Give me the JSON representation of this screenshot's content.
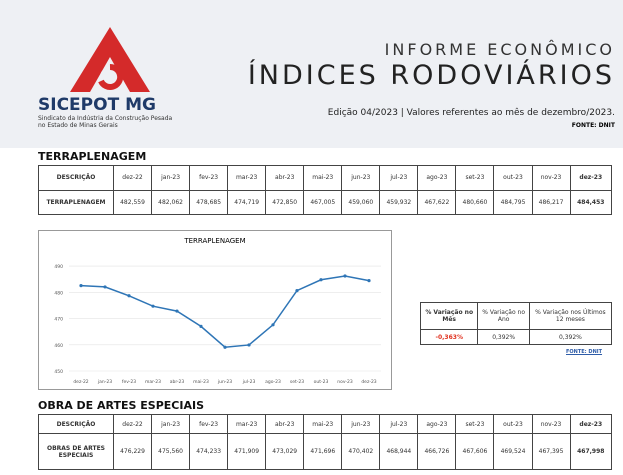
{
  "header": {
    "logo": "SICEPOT MG",
    "logo_subtitle": "Sindicato da Indústria da Construção Pesada no Estado de Minas Gerais",
    "kicker": "INFORME ECONÔMICO",
    "title": "ÍNDICES RODOVIÁRIOS",
    "edition": "Edição 04/2023  |  Valores referentes ao mês de dezembro/2023.",
    "source": "FONTE: DNIT"
  },
  "terraplenagem": {
    "title": "TERRAPLENAGEM",
    "columns": [
      "DESCRIÇÃO",
      "dez-22",
      "jan-23",
      "fev-23",
      "mar-23",
      "abr-23",
      "mai-23",
      "jun-23",
      "jul-23",
      "ago-23",
      "set-23",
      "out-23",
      "nov-23",
      "dez-23"
    ],
    "rows": [
      [
        "TERRAPLENAGEM",
        "482,559",
        "482,062",
        "478,685",
        "474,719",
        "472,850",
        "467,005",
        "459,060",
        "459,932",
        "467,622",
        "480,660",
        "484,795",
        "486,217",
        "484,453"
      ]
    ]
  },
  "chart_data": {
    "type": "line",
    "title": "TERRAPLENAGEM",
    "categories": [
      "dez-22",
      "jan-23",
      "fev-23",
      "mar-23",
      "abr-23",
      "mai-23",
      "jun-23",
      "jul-23",
      "ago-23",
      "set-23",
      "out-23",
      "nov-23",
      "dez-23"
    ],
    "series": [
      {
        "name": "TERRAPLENAGEM",
        "color": "#2e75b6",
        "values": [
          482.559,
          482.062,
          478.685,
          474.719,
          472.85,
          467.005,
          459.06,
          459.932,
          467.622,
          480.66,
          484.795,
          486.217,
          484.453
        ]
      }
    ],
    "ylim": [
      450,
      495
    ],
    "yticks": [
      450,
      460,
      470,
      480,
      490
    ],
    "grid": true
  },
  "variacao": {
    "columns": [
      "% Variação no Mês",
      "% Variação no Ano",
      "% Variação nos Últimos 12 meses"
    ],
    "rows": [
      [
        "-0,363%",
        "0,392%",
        "0,392%"
      ]
    ],
    "source": "FONTE: DNIT"
  },
  "obras": {
    "title": "OBRA DE ARTES ESPECIAIS",
    "columns": [
      "DESCRIÇÃO",
      "dez-22",
      "jan-23",
      "fev-23",
      "mar-23",
      "abr-23",
      "mai-23",
      "jun-23",
      "jul-23",
      "ago-23",
      "set-23",
      "out-23",
      "nov-23",
      "dez-23"
    ],
    "rows": [
      [
        "OBRAS DE ARTES ESPECIAIS",
        "476,229",
        "475,560",
        "474,233",
        "471,909",
        "473,029",
        "471,696",
        "470,402",
        "468,944",
        "466,726",
        "467,606",
        "469,524",
        "467,395",
        "467,998"
      ]
    ]
  }
}
